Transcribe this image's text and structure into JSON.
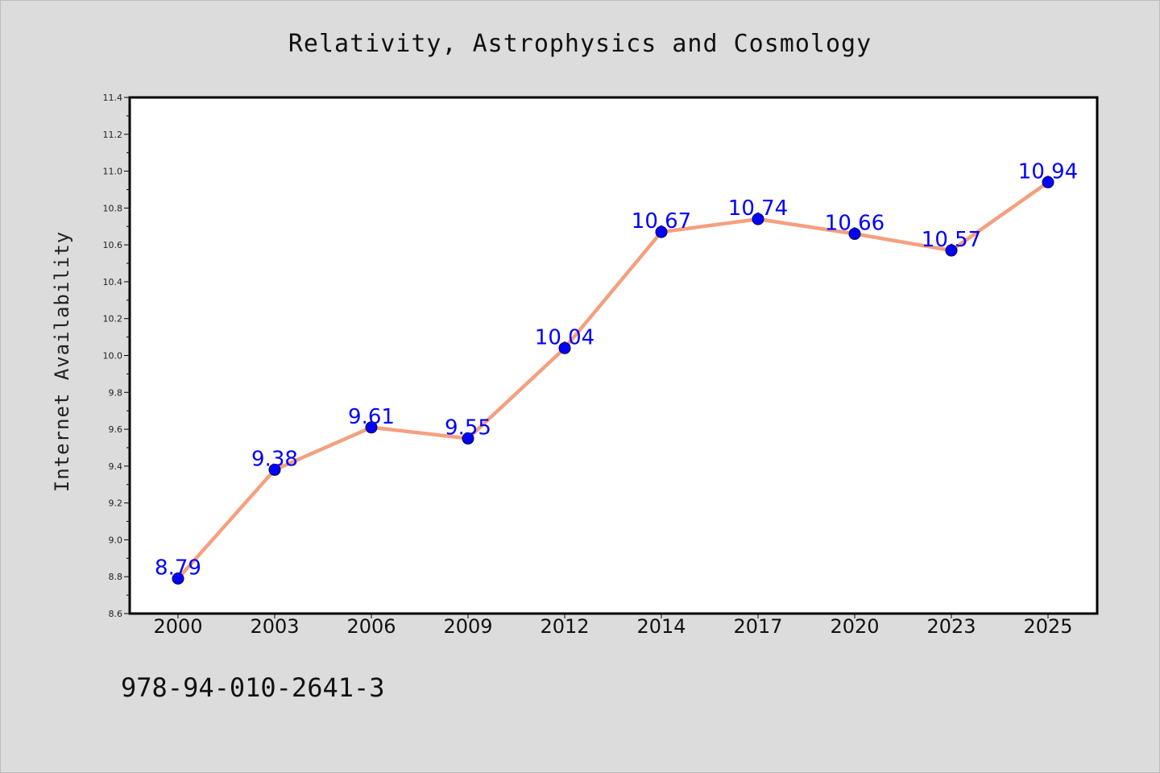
{
  "chart_data": {
    "type": "line",
    "title": "Relativity, Astrophysics and Cosmology",
    "xlabel": "",
    "ylabel": "Internet Availability",
    "categories": [
      "2000",
      "2003",
      "2006",
      "2009",
      "2012",
      "2014",
      "2017",
      "2020",
      "2023",
      "2025"
    ],
    "values": [
      8.79,
      9.38,
      9.61,
      9.55,
      10.04,
      10.67,
      10.74,
      10.66,
      10.57,
      10.94
    ],
    "data_labels": [
      "8.79",
      "9.38",
      "9.61",
      "9.55",
      "10.04",
      "10.67",
      "10.74",
      "10.66",
      "10.57",
      "10.94"
    ],
    "ylim": [
      8.6,
      11.4
    ],
    "yticks": [
      "8.6",
      "8.8",
      "9.0",
      "9.2",
      "9.4",
      "9.6",
      "9.8",
      "10.0",
      "10.2",
      "10.4",
      "10.6",
      "10.8",
      "11.0",
      "11.2",
      "11.4"
    ],
    "grid": false,
    "line_color": "#f4a07f",
    "marker_color": "#0000ff",
    "label_color": "#0000ff"
  },
  "footer": {
    "isbn": "978-94-010-2641-3"
  }
}
